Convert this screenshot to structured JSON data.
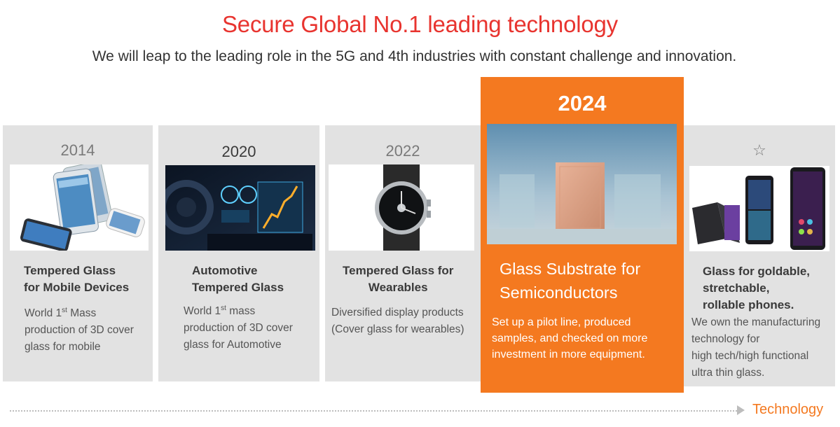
{
  "header": {
    "title": "Secure Global No.1 leading technology",
    "subtitle": "We will leap to the leading role in the 5G and 4th industries with constant challenge and innovation."
  },
  "cards": [
    {
      "year": "2014",
      "title_lines": [
        "Tempered Glass",
        "for Mobile Devices"
      ],
      "desc_lines": [
        "World 1",
        "st",
        " Mass",
        "production of 3D cover",
        "glass for mobile"
      ],
      "image": "smartphones-image"
    },
    {
      "year": "2020",
      "title_lines": [
        "Automotive",
        "Tempered Glass"
      ],
      "desc_lines": [
        "World 1",
        "st",
        " mass",
        "production of 3D cover",
        "glass for Automotive"
      ],
      "image": "car-dashboard-image"
    },
    {
      "year": "2022",
      "title_lines": [
        "Tempered Glass for",
        "Wearables"
      ],
      "desc_lines": [
        "Diversified display products",
        "(Cover glass for wearables)"
      ],
      "image": "smartwatch-image"
    },
    {
      "year": "2024",
      "title_lines": [
        "Glass Substrate for",
        "Semiconductors"
      ],
      "desc_lines": [
        "Set up a pilot line, produced",
        "samples, and checked on more",
        "investment in more equipment."
      ],
      "image": "glass-substrate-image",
      "highlight_color": "#f47920"
    },
    {
      "year_icon": "star-icon",
      "title_lines": [
        "Glass for goldable,",
        "stretchable,",
        "rollable phones."
      ],
      "desc_lines": [
        "We own the manufacturing",
        "technology for",
        "high tech/high functional",
        "ultra thin glass."
      ],
      "image": "foldable-phones-image"
    }
  ],
  "timeline": {
    "label": "Technology"
  },
  "colors": {
    "accent_red": "#e8342f",
    "accent_orange": "#f47920",
    "card_gray": "#e2e2e2"
  }
}
